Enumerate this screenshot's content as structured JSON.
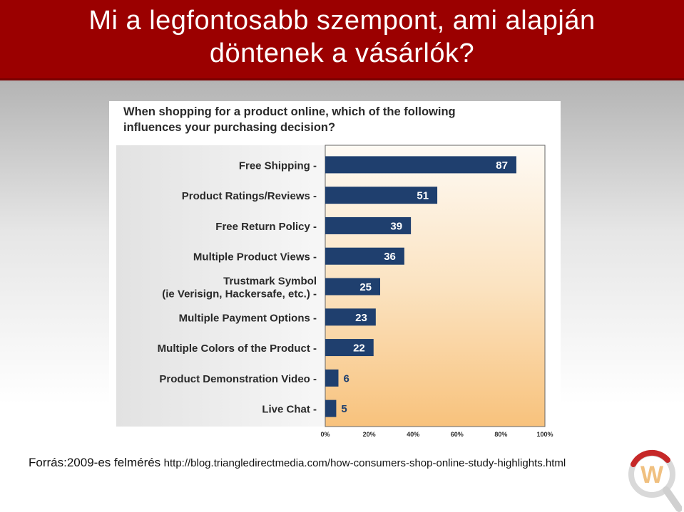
{
  "slide": {
    "title_line1": "Mi a legfontosabb szempont, ami alapján",
    "title_line2": "döntenek a vásárlók?",
    "source_label": "Forrás:2009-es felmérés",
    "source_url": "http://blog.triangledirectmedia.com/how-consumers-shop-online-study-highlights.html",
    "header_color": "#9b0000"
  },
  "logo": {
    "icon": "magnifier-w-logo",
    "letter": "W"
  },
  "chart_data": {
    "type": "bar",
    "orientation": "horizontal",
    "title_line1": "When shopping for a product online, which of the following",
    "title_line2": "influences your purchasing decision?",
    "categories": [
      [
        "Free Shipping -"
      ],
      [
        "Product Ratings/Reviews -"
      ],
      [
        "Free Return Policy -"
      ],
      [
        "Multiple Product Views -"
      ],
      [
        "Trustmark Symbol",
        "(ie Verisign, Hackersafe, etc.) -"
      ],
      [
        "Multiple Payment Options -"
      ],
      [
        "Multiple Colors of the Product -"
      ],
      [
        "Product Demonstration Video -"
      ],
      [
        "Live Chat -"
      ]
    ],
    "values": [
      87,
      51,
      39,
      36,
      25,
      23,
      22,
      6,
      5
    ],
    "value_unit": "%",
    "xlim": [
      0,
      100
    ],
    "xticks": [
      "0%",
      "20%",
      "40%",
      "60%",
      "80%",
      "100%"
    ],
    "xlabel": "",
    "ylabel": "",
    "grid": false,
    "legend": "none",
    "colors": {
      "bar": "#1f3f6e",
      "plot_bg_top": "#fefaf4",
      "plot_bg_bottom": "#f8c27c",
      "label_bg": "#ececec",
      "label_text": "#2a2a2a",
      "small_value_text": "#1f3f6e"
    }
  }
}
